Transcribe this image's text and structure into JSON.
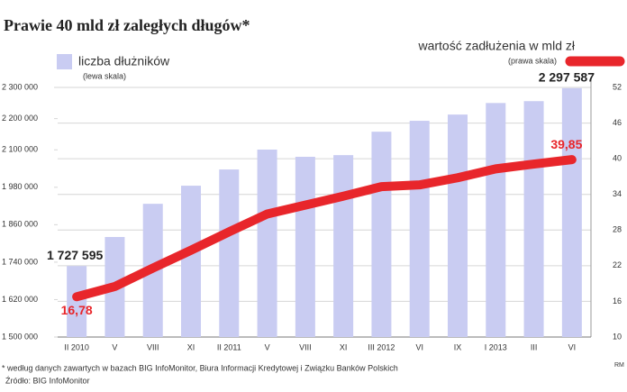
{
  "chart_data": {
    "type": "bar",
    "title": "Prawie 40 mld zł zaległych długów*",
    "categories": [
      "II 2010",
      "V",
      "VIII",
      "XI",
      "II 2011",
      "V",
      "VIII",
      "XI",
      "III 2012",
      "VI",
      "IX",
      "I 2013",
      "III",
      "VI"
    ],
    "series": [
      {
        "name": "liczba dłużników",
        "note": "(lewa skala)",
        "type": "bar",
        "axis": "y",
        "color": "#c9ccf2",
        "values": [
          1727595,
          1820600,
          1927000,
          1985000,
          2037000,
          2100700,
          2077600,
          2083000,
          2158000,
          2193000,
          2213000,
          2250000,
          2256000,
          2297587
        ],
        "value_labels": [
          "1 727 595",
          null,
          null,
          null,
          null,
          null,
          null,
          null,
          null,
          null,
          null,
          null,
          null,
          "2 297 587"
        ]
      },
      {
        "name": "wartość zadłużenia w mld zł",
        "note": "(prawa skala)",
        "type": "line",
        "axis": "y2",
        "color": "#e8262b",
        "values": [
          16.78,
          18.5,
          21.6,
          24.6,
          27.7,
          30.7,
          32.2,
          33.7,
          35.3,
          35.6,
          36.8,
          38.3,
          39.1,
          39.85
        ],
        "value_labels": [
          "16,78",
          null,
          null,
          null,
          null,
          null,
          null,
          null,
          null,
          null,
          null,
          null,
          null,
          "39,85"
        ]
      }
    ],
    "ylim": [
      1500000,
      2300000
    ],
    "yticks": [
      {
        "value": 1500000,
        "label": "1 500 000"
      },
      {
        "value": 1620000,
        "label": "1 620 000"
      },
      {
        "value": 1740000,
        "label": "1 740 000"
      },
      {
        "value": 1860000,
        "label": "1 860 000"
      },
      {
        "value": 1980000,
        "label": "1 980 000"
      },
      {
        "value": 2100000,
        "label": "2 100 000"
      },
      {
        "value": 2200000,
        "label": "2 200 000"
      },
      {
        "value": 2300000,
        "label": "2 300 000"
      }
    ],
    "y2lim": [
      10,
      52
    ],
    "y2ticks": [
      10,
      16,
      22,
      28,
      34,
      40,
      46,
      52
    ],
    "grid": true,
    "footnote": "* według danych zawartych w bazach BIG InfoMonitor, Biura Informacji Kredytowej i Związku Banków Polskich",
    "source": "Źródło: BIG InfoMonitor",
    "author": "RM"
  }
}
